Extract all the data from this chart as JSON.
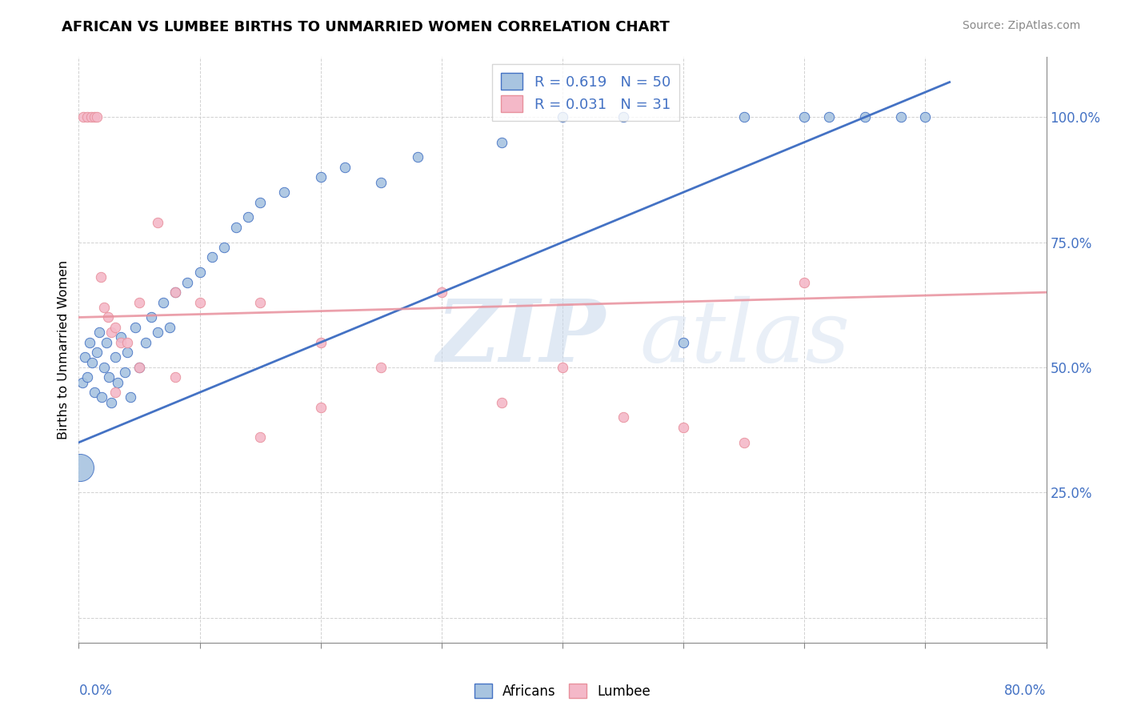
{
  "title": "AFRICAN VS LUMBEE BIRTHS TO UNMARRIED WOMEN CORRELATION CHART",
  "source": "Source: ZipAtlas.com",
  "ylabel": "Births to Unmarried Women",
  "legend_africans": "Africans",
  "legend_lumbee": "Lumbee",
  "r_african": 0.619,
  "n_african": 50,
  "r_lumbee": 0.031,
  "n_lumbee": 31,
  "watermark_zip": "ZIP",
  "watermark_atlas": "atlas",
  "color_african": "#a8c4e0",
  "color_lumbee": "#f4b8c8",
  "color_african_line": "#4472c4",
  "color_lumbee_line": "#e8909c",
  "africans_x": [
    0.3,
    0.5,
    0.7,
    0.9,
    1.1,
    1.3,
    1.5,
    1.7,
    1.9,
    2.1,
    2.3,
    2.5,
    2.7,
    3.0,
    3.2,
    3.5,
    3.8,
    4.0,
    4.3,
    4.7,
    5.0,
    5.5,
    6.0,
    6.5,
    7.0,
    7.5,
    8.0,
    9.0,
    10.0,
    11.0,
    12.0,
    13.0,
    14.0,
    15.0,
    17.0,
    20.0,
    22.0,
    25.0,
    28.0,
    35.0,
    40.0,
    45.0,
    50.0,
    55.0,
    60.0,
    62.0,
    65.0,
    68.0,
    70.0,
    0.1
  ],
  "africans_y": [
    47.0,
    52.0,
    48.0,
    55.0,
    51.0,
    45.0,
    53.0,
    57.0,
    44.0,
    50.0,
    55.0,
    48.0,
    43.0,
    52.0,
    47.0,
    56.0,
    49.0,
    53.0,
    44.0,
    58.0,
    50.0,
    55.0,
    60.0,
    57.0,
    63.0,
    58.0,
    65.0,
    67.0,
    69.0,
    72.0,
    74.0,
    78.0,
    80.0,
    83.0,
    85.0,
    88.0,
    90.0,
    87.0,
    92.0,
    95.0,
    100.0,
    100.0,
    55.0,
    100.0,
    100.0,
    100.0,
    100.0,
    100.0,
    100.0,
    30.0
  ],
  "africans_size_special": 49,
  "africans_size_big": 600,
  "lumbee_x": [
    0.4,
    0.7,
    1.0,
    1.3,
    1.5,
    1.8,
    2.1,
    2.4,
    2.7,
    3.0,
    3.5,
    4.0,
    5.0,
    6.5,
    8.0,
    10.0,
    15.0,
    20.0,
    25.0,
    30.0,
    35.0,
    40.0,
    45.0,
    50.0,
    55.0,
    60.0,
    3.0,
    5.0,
    8.0,
    15.0,
    20.0
  ],
  "lumbee_y": [
    100.0,
    100.0,
    100.0,
    100.0,
    100.0,
    68.0,
    62.0,
    60.0,
    57.0,
    58.0,
    55.0,
    55.0,
    63.0,
    79.0,
    65.0,
    63.0,
    63.0,
    55.0,
    50.0,
    65.0,
    43.0,
    50.0,
    40.0,
    38.0,
    35.0,
    67.0,
    45.0,
    50.0,
    48.0,
    36.0,
    42.0
  ],
  "xlim": [
    0,
    80
  ],
  "ylim": [
    -5,
    112
  ],
  "ytick_vals": [
    0,
    25,
    50,
    75,
    100
  ],
  "ytick_labels": [
    "",
    "25.0%",
    "50.0%",
    "75.0%",
    "100.0%"
  ],
  "background_color": "#ffffff",
  "grid_color": "#cccccc"
}
